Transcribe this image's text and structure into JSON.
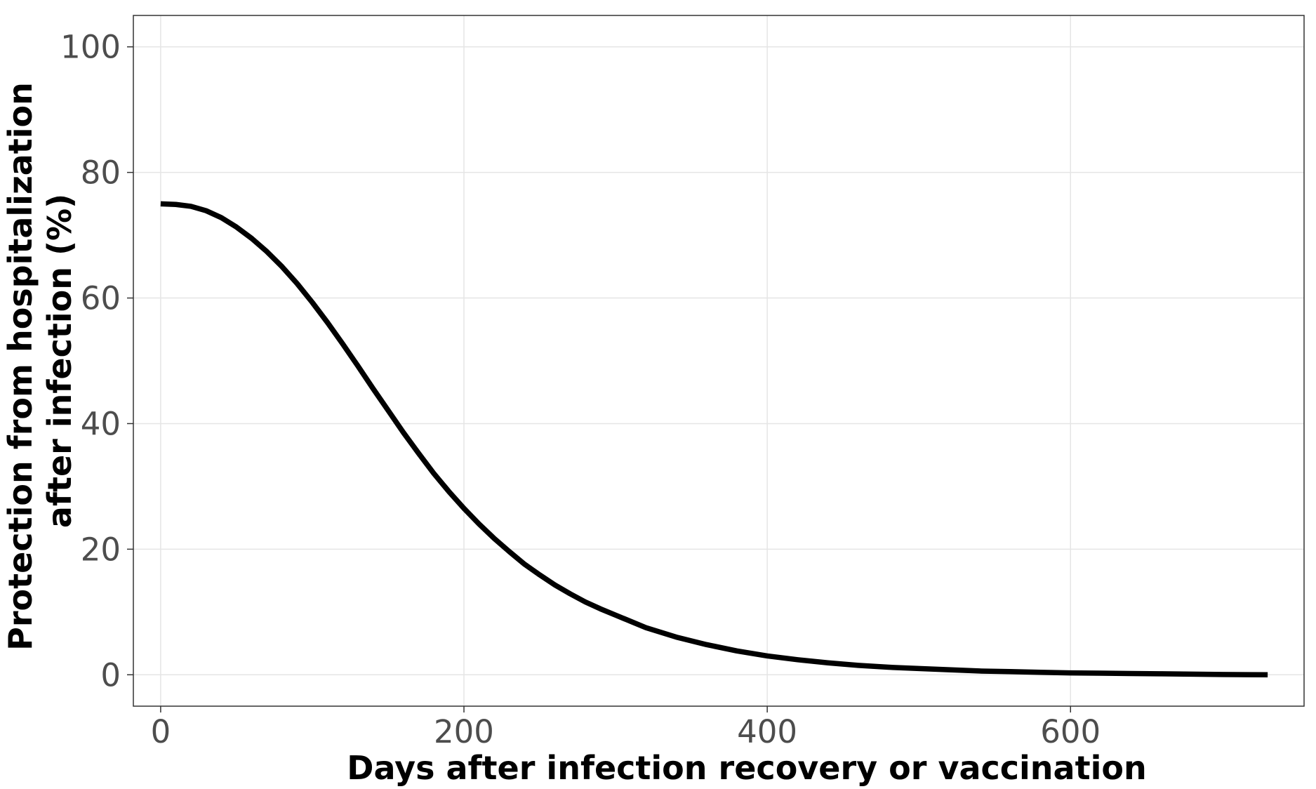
{
  "chart_data": {
    "type": "line",
    "title": "",
    "xlabel": "Days after infection recovery or vaccination",
    "ylabel_lines": [
      "Protection from hospitalization",
      "after infection (%)"
    ],
    "xlim": [
      -18,
      754
    ],
    "ylim": [
      -5,
      105
    ],
    "x_ticks": [
      0,
      200,
      400,
      600
    ],
    "x_tick_labels": [
      "0",
      "200",
      "400",
      "600"
    ],
    "y_ticks": [
      0,
      20,
      40,
      60,
      80,
      100
    ],
    "y_tick_labels": [
      "0",
      "20",
      "40",
      "60",
      "80",
      "100"
    ],
    "grid": true,
    "series": [
      {
        "color": "#000000",
        "x": [
          0,
          10,
          20,
          30,
          40,
          50,
          60,
          70,
          80,
          90,
          100,
          110,
          120,
          130,
          140,
          150,
          160,
          170,
          180,
          190,
          200,
          210,
          220,
          230,
          240,
          250,
          260,
          270,
          280,
          290,
          300,
          320,
          340,
          360,
          380,
          400,
          420,
          440,
          460,
          480,
          500,
          520,
          540,
          560,
          580,
          600,
          620,
          640,
          660,
          680,
          700,
          730
        ],
        "values": [
          75.0,
          74.9,
          74.6,
          73.9,
          72.8,
          71.3,
          69.5,
          67.4,
          65.0,
          62.3,
          59.3,
          56.1,
          52.7,
          49.2,
          45.6,
          42.1,
          38.6,
          35.3,
          32.1,
          29.2,
          26.5,
          24.0,
          21.7,
          19.6,
          17.6,
          15.9,
          14.3,
          12.9,
          11.6,
          10.5,
          9.5,
          7.5,
          6.0,
          4.8,
          3.8,
          3.0,
          2.4,
          1.9,
          1.5,
          1.2,
          1.0,
          0.8,
          0.6,
          0.5,
          0.4,
          0.3,
          0.25,
          0.2,
          0.15,
          0.1,
          0.05,
          0.0
        ]
      }
    ]
  }
}
